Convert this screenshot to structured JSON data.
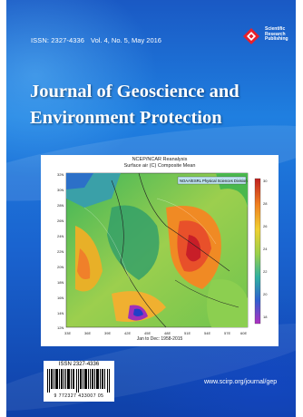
{
  "cover": {
    "issn": "ISSN: 2327-4336",
    "volume": "Vol. 4, No. 5, May 2016",
    "title_line1": "Journal of Geoscience and",
    "title_line2": "Environment Protection",
    "publisher_lines": [
      "Scientific",
      "Research",
      "Publishing"
    ],
    "url": "www.scirp.org/journal/gep",
    "colors": {
      "background": "#1f7fe0",
      "title": "#ffffff"
    }
  },
  "map": {
    "header_line1": "NCEP/NCAR Reanalysis",
    "header_line2": "Surface air (C) Composite Mean",
    "credit": "NOAA/ESRL Physical Sciences Division",
    "footer": "Jan to Dec: 1958-2015",
    "y_ticks": [
      "32N",
      "30N",
      "28N",
      "26N",
      "24N",
      "22N",
      "20N",
      "18N",
      "16N",
      "14N",
      "12N"
    ],
    "x_ticks": [
      "33E",
      "36E",
      "39E",
      "42E",
      "45E",
      "48E",
      "51E",
      "54E",
      "57E",
      "60E"
    ],
    "colorbar_ticks": [
      "30",
      "28",
      "26",
      "24",
      "22",
      "20",
      "18"
    ]
  },
  "barcode": {
    "issn": "ISSN 2327-4336",
    "number": "9 772327 433007 05"
  }
}
